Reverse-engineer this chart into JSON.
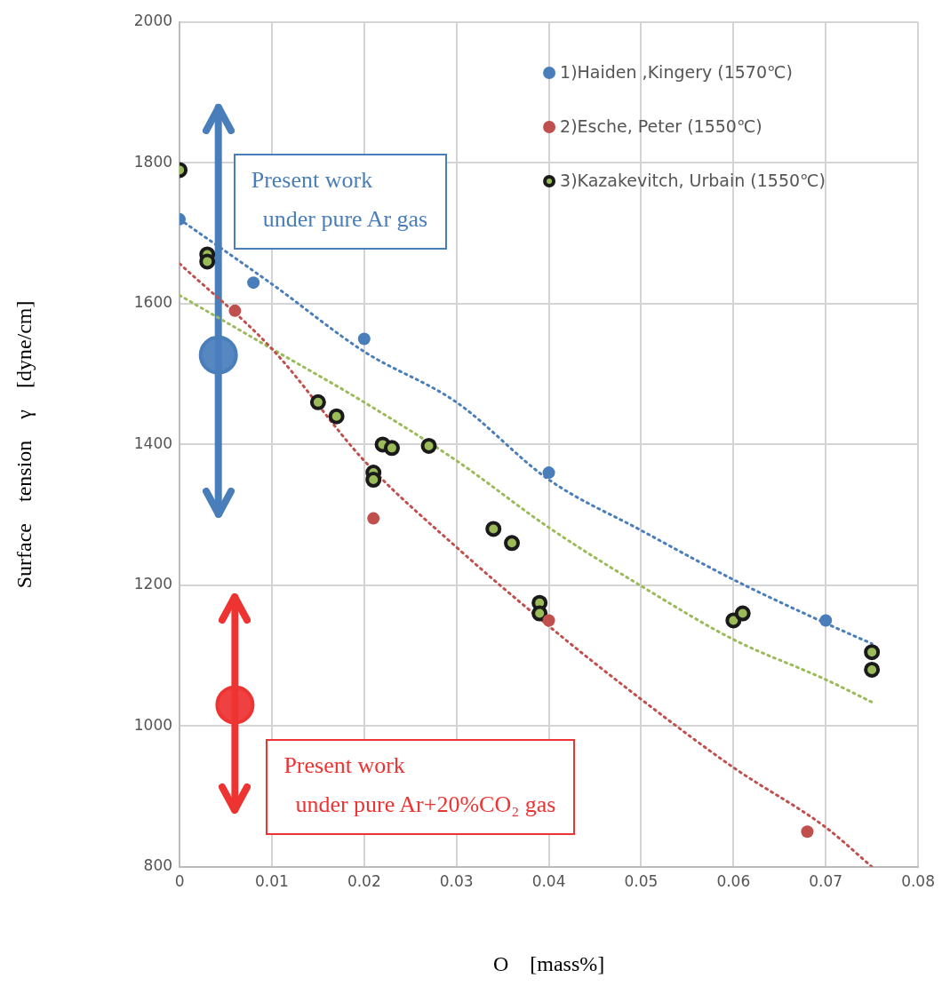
{
  "chart_data": {
    "type": "scatter",
    "xlabel": "O　[mass%]",
    "ylabel": "Surface　tension　γ　[dyne/cm]",
    "xlim": [
      0,
      0.08
    ],
    "xticks": [
      0,
      0.01,
      0.02,
      0.03,
      0.04,
      0.05,
      0.06,
      0.07,
      0.08
    ],
    "ylim": [
      800,
      2000
    ],
    "yticks": [
      800,
      1000,
      1200,
      1400,
      1600,
      1800,
      2000
    ],
    "grid": true,
    "legend": "top right",
    "marker": "circle",
    "series": [
      {
        "name": "1)Haiden ,Kingery (1570℃)",
        "color": "#4a7ebb",
        "x": [
          0,
          0.008,
          0.02,
          0.04,
          0.07
        ],
        "values": [
          1720,
          1630,
          1550,
          1360,
          1150
        ]
      },
      {
        "name": "2)Esche, Peter (1550℃)",
        "color": "#c0504d",
        "x": [
          0.006,
          0.021,
          0.04,
          0.068
        ],
        "values": [
          1590,
          1295,
          1150,
          850
        ]
      },
      {
        "name": "3)Kazakevitch, Urbain (1550℃)",
        "color": "#1a1a1a",
        "x": [
          0,
          0.003,
          0.003,
          0.015,
          0.017,
          0.021,
          0.021,
          0.022,
          0.023,
          0.027,
          0.034,
          0.036,
          0.039,
          0.039,
          0.06,
          0.061,
          0.075,
          0.075
        ],
        "values": [
          1790,
          1670,
          1660,
          1460,
          1440,
          1360,
          1350,
          1400,
          1395,
          1398,
          1280,
          1260,
          1175,
          1160,
          1150,
          1160,
          1105,
          1080
        ]
      },
      {
        "type": "line",
        "line_style": "dotted",
        "marker": "none",
        "color": "#4a7ebb",
        "x": [
          0,
          0.01,
          0.02,
          0.03,
          0.04,
          0.05,
          0.06,
          0.07,
          0.075
        ],
        "values": [
          1720,
          1628,
          1532,
          1460,
          1350,
          1278,
          1208,
          1146,
          1117
        ]
      },
      {
        "type": "line",
        "line_style": "dotted",
        "marker": "none",
        "color": "#c0504d",
        "x": [
          0,
          0.01,
          0.02,
          0.03,
          0.04,
          0.05,
          0.06,
          0.07,
          0.075
        ],
        "values": [
          1657,
          1536,
          1377,
          1254,
          1142,
          1038,
          941,
          856,
          800
        ]
      },
      {
        "type": "line",
        "line_style": "dotted",
        "marker": "none",
        "color": "#9bbb59",
        "x": [
          0,
          0.01,
          0.02,
          0.03,
          0.04,
          0.05,
          0.06,
          0.07,
          0.075
        ],
        "values": [
          1612,
          1536,
          1460,
          1377,
          1282,
          1199,
          1123,
          1066,
          1034
        ]
      },
      {
        "color": "#4a7ebb",
        "x": [
          0.0042
        ],
        "values": [
          1527
        ],
        "errors": [
          [
            1301,
            1879
          ]
        ]
      },
      {
        "color": "#ee3333",
        "x": [
          0.006
        ],
        "values": [
          1030
        ],
        "errors": [
          [
            881,
            1183
          ]
        ]
      }
    ],
    "annotations": [
      "Present work\n  under pure Ar gas",
      "Present work\n  under pure Ar+20%CO₂ gas"
    ]
  }
}
